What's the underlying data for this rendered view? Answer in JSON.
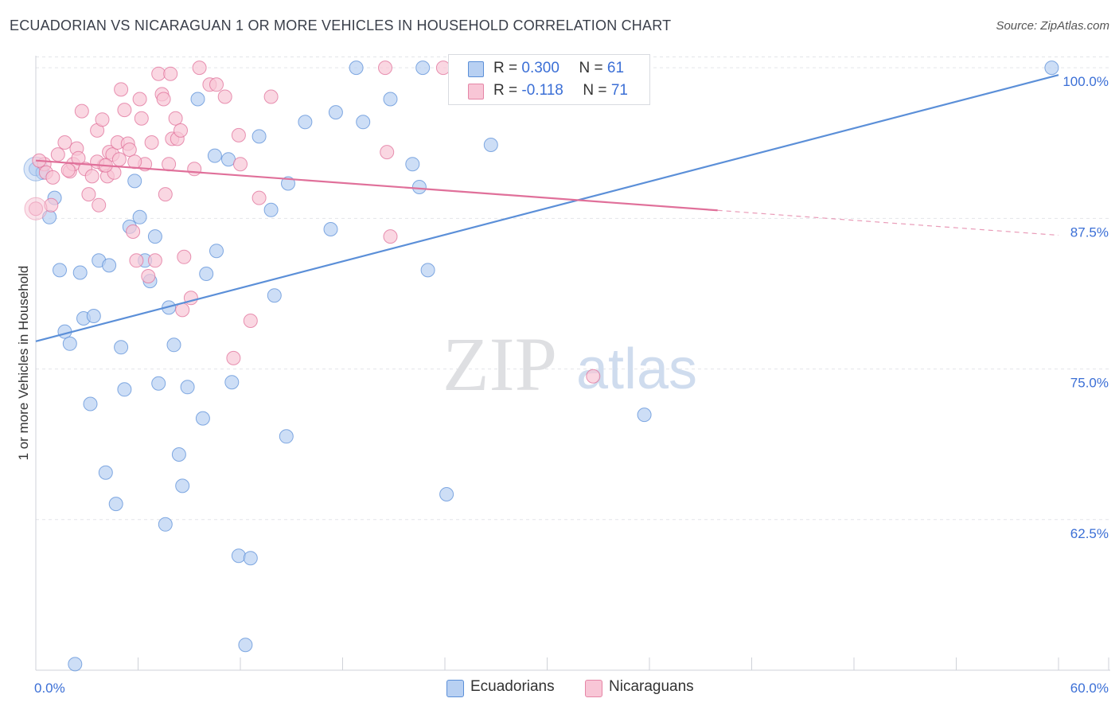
{
  "title": "ECUADORIAN VS NICARAGUAN 1 OR MORE VEHICLES IN HOUSEHOLD CORRELATION CHART",
  "source": "Source: ZipAtlas.com",
  "watermark": {
    "zip": "ZIP",
    "atlas": "atlas"
  },
  "legend": {
    "r_label": "R =",
    "n_label": "N =",
    "series": [
      {
        "r": "0.300",
        "n": "61",
        "fill": "#b8d0f2",
        "stroke": "#5b8fd8"
      },
      {
        "r": "-0.118",
        "n": "71",
        "fill": "#f8c6d6",
        "stroke": "#e585a6"
      }
    ]
  },
  "bottom_legend": [
    "Ecuadorians",
    "Nicaraguans"
  ],
  "chart_data": {
    "type": "scatter",
    "title": "ECUADORIAN VS NICARAGUAN 1 OR MORE VEHICLES IN HOUSEHOLD CORRELATION CHART",
    "xlabel": "",
    "ylabel": "1 or more Vehicles in Household",
    "xlim": [
      0,
      60
    ],
    "ylim": [
      50,
      101
    ],
    "x_ticks": [
      {
        "value": 0,
        "label": "0.0%"
      },
      {
        "value": 60,
        "label": "60.0%"
      }
    ],
    "x_minor_ticks": [
      6,
      12,
      18,
      24,
      30,
      36,
      42,
      48,
      54
    ],
    "y_ticks": [
      {
        "value": 100,
        "label": "100.0%"
      },
      {
        "value": 87.5,
        "label": "87.5%"
      },
      {
        "value": 75,
        "label": "75.0%"
      },
      {
        "value": 62.5,
        "label": "62.5%"
      }
    ],
    "grid": true,
    "series": [
      {
        "name": "Ecuadorians",
        "color": "#5b8fd8",
        "fill": "#b8d0f2",
        "trend": {
          "x": [
            0,
            60
          ],
          "y": [
            77.3,
            99.4
          ],
          "dashed_from": null
        },
        "points": [
          [
            0.0,
            91.6
          ],
          [
            0.4,
            91.3
          ],
          [
            0.8,
            87.6
          ],
          [
            1.1,
            89.2
          ],
          [
            1.4,
            83.2
          ],
          [
            1.7,
            78.1
          ],
          [
            2.0,
            77.1
          ],
          [
            2.6,
            83.0
          ],
          [
            2.8,
            79.2
          ],
          [
            3.2,
            72.1
          ],
          [
            3.4,
            79.4
          ],
          [
            3.7,
            84.0
          ],
          [
            4.1,
            66.4
          ],
          [
            4.3,
            83.6
          ],
          [
            4.7,
            63.8
          ],
          [
            5.0,
            76.8
          ],
          [
            5.2,
            73.3
          ],
          [
            5.5,
            86.8
          ],
          [
            5.8,
            90.6
          ],
          [
            6.1,
            87.6
          ],
          [
            6.4,
            84.0
          ],
          [
            6.7,
            82.3
          ],
          [
            7.0,
            86.0
          ],
          [
            7.2,
            73.8
          ],
          [
            7.6,
            62.1
          ],
          [
            7.8,
            80.1
          ],
          [
            8.1,
            77.0
          ],
          [
            8.4,
            67.9
          ],
          [
            8.6,
            65.3
          ],
          [
            8.9,
            73.5
          ],
          [
            9.5,
            97.4
          ],
          [
            9.8,
            70.9
          ],
          [
            10.0,
            82.9
          ],
          [
            10.5,
            92.7
          ],
          [
            10.6,
            84.8
          ],
          [
            11.3,
            92.4
          ],
          [
            11.5,
            73.9
          ],
          [
            11.9,
            59.5
          ],
          [
            12.3,
            52.1
          ],
          [
            12.6,
            59.3
          ],
          [
            13.1,
            94.3
          ],
          [
            13.8,
            88.2
          ],
          [
            14.0,
            81.1
          ],
          [
            14.7,
            69.4
          ],
          [
            14.8,
            90.4
          ],
          [
            15.8,
            95.5
          ],
          [
            17.3,
            86.6
          ],
          [
            17.6,
            96.3
          ],
          [
            18.8,
            100.0
          ],
          [
            19.2,
            95.5
          ],
          [
            20.8,
            97.4
          ],
          [
            22.1,
            92.0
          ],
          [
            22.5,
            90.1
          ],
          [
            22.7,
            100.0
          ],
          [
            23.0,
            83.2
          ],
          [
            24.1,
            64.6
          ],
          [
            24.9,
            98.0
          ],
          [
            26.7,
            93.6
          ],
          [
            35.7,
            71.2
          ],
          [
            59.6,
            100.0
          ],
          [
            2.3,
            50.5
          ]
        ]
      },
      {
        "name": "Nicaraguans",
        "color": "#e0709a",
        "fill": "#f8c6d6",
        "trend": {
          "x": [
            0,
            60
          ],
          "y": [
            92.3,
            86.1
          ],
          "dashed_from": 40
        },
        "points": [
          [
            0.0,
            88.3
          ],
          [
            0.5,
            92.0
          ],
          [
            0.6,
            91.3
          ],
          [
            0.9,
            88.6
          ],
          [
            1.0,
            90.9
          ],
          [
            1.3,
            92.8
          ],
          [
            1.7,
            93.8
          ],
          [
            2.0,
            91.4
          ],
          [
            2.2,
            92.0
          ],
          [
            2.4,
            93.3
          ],
          [
            2.5,
            92.5
          ],
          [
            2.7,
            96.4
          ],
          [
            2.9,
            91.6
          ],
          [
            3.1,
            89.5
          ],
          [
            3.3,
            91.0
          ],
          [
            3.6,
            94.8
          ],
          [
            3.7,
            88.6
          ],
          [
            3.9,
            95.7
          ],
          [
            4.0,
            91.9
          ],
          [
            4.2,
            91.0
          ],
          [
            4.3,
            93.0
          ],
          [
            4.5,
            92.8
          ],
          [
            4.6,
            91.3
          ],
          [
            4.8,
            93.8
          ],
          [
            4.9,
            92.4
          ],
          [
            5.0,
            98.2
          ],
          [
            5.2,
            96.5
          ],
          [
            5.4,
            93.7
          ],
          [
            5.5,
            93.2
          ],
          [
            5.7,
            86.4
          ],
          [
            5.9,
            84.0
          ],
          [
            6.1,
            97.4
          ],
          [
            6.2,
            95.8
          ],
          [
            6.4,
            92.0
          ],
          [
            6.6,
            82.7
          ],
          [
            6.8,
            93.8
          ],
          [
            7.0,
            84.0
          ],
          [
            7.2,
            99.5
          ],
          [
            7.4,
            97.8
          ],
          [
            7.5,
            97.4
          ],
          [
            7.6,
            89.5
          ],
          [
            7.8,
            92.0
          ],
          [
            7.9,
            99.5
          ],
          [
            8.0,
            94.1
          ],
          [
            8.2,
            95.8
          ],
          [
            8.3,
            94.1
          ],
          [
            8.5,
            94.8
          ],
          [
            8.6,
            79.9
          ],
          [
            8.7,
            84.3
          ],
          [
            9.1,
            80.9
          ],
          [
            9.3,
            91.6
          ],
          [
            9.6,
            100.0
          ],
          [
            10.2,
            98.6
          ],
          [
            10.6,
            98.6
          ],
          [
            11.1,
            97.6
          ],
          [
            11.6,
            75.9
          ],
          [
            11.9,
            94.4
          ],
          [
            12.0,
            92.0
          ],
          [
            12.6,
            79.0
          ],
          [
            13.1,
            89.2
          ],
          [
            13.8,
            97.6
          ],
          [
            20.5,
            100.0
          ],
          [
            20.6,
            93.0
          ],
          [
            20.8,
            86.0
          ],
          [
            23.9,
            100.0
          ],
          [
            32.7,
            74.4
          ],
          [
            0.2,
            92.3
          ],
          [
            1.9,
            91.5
          ],
          [
            3.6,
            92.2
          ],
          [
            4.1,
            91.9
          ],
          [
            5.8,
            92.2
          ]
        ]
      }
    ]
  }
}
